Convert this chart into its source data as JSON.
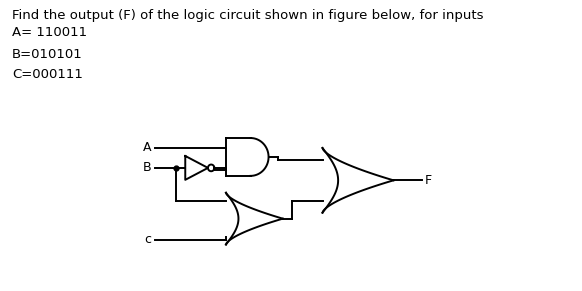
{
  "title_line1": "Find the output (F) of the logic circuit shown in figure below, for inputs",
  "title_line2": "A= 110011",
  "line3": "B=010101",
  "line4": "C=000111",
  "bg_color": "#ffffff",
  "text_color": "#000000",
  "gate_color": "#000000",
  "font_size_title": 9.5,
  "font_size_labels": 9,
  "lw": 1.4,
  "fig_w": 5.82,
  "fig_h": 2.91,
  "dpi": 100
}
